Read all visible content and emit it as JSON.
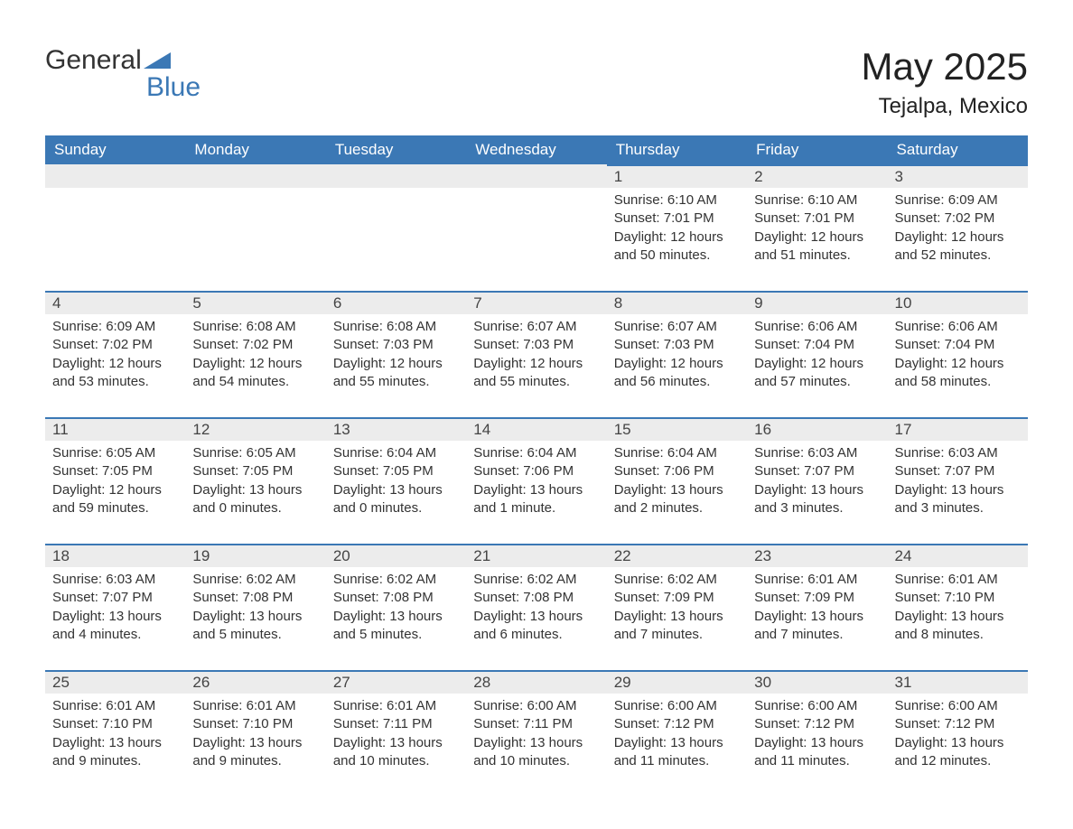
{
  "logo": {
    "text1": "General",
    "text2": "Blue"
  },
  "header": {
    "month": "May 2025",
    "location": "Tejalpa, Mexico"
  },
  "colors": {
    "header_bg": "#3b78b5",
    "header_text": "#ffffff",
    "daynum_bg": "#ececec",
    "daynum_border": "#3b78b5",
    "body_text": "#333333",
    "page_bg": "#ffffff"
  },
  "weekdays": [
    "Sunday",
    "Monday",
    "Tuesday",
    "Wednesday",
    "Thursday",
    "Friday",
    "Saturday"
  ],
  "weeks": [
    [
      {
        "blank": true
      },
      {
        "blank": true
      },
      {
        "blank": true
      },
      {
        "blank": true
      },
      {
        "day": "1",
        "sunrise": "Sunrise: 6:10 AM",
        "sunset": "Sunset: 7:01 PM",
        "daylight": "Daylight: 12 hours and 50 minutes."
      },
      {
        "day": "2",
        "sunrise": "Sunrise: 6:10 AM",
        "sunset": "Sunset: 7:01 PM",
        "daylight": "Daylight: 12 hours and 51 minutes."
      },
      {
        "day": "3",
        "sunrise": "Sunrise: 6:09 AM",
        "sunset": "Sunset: 7:02 PM",
        "daylight": "Daylight: 12 hours and 52 minutes."
      }
    ],
    [
      {
        "day": "4",
        "sunrise": "Sunrise: 6:09 AM",
        "sunset": "Sunset: 7:02 PM",
        "daylight": "Daylight: 12 hours and 53 minutes."
      },
      {
        "day": "5",
        "sunrise": "Sunrise: 6:08 AM",
        "sunset": "Sunset: 7:02 PM",
        "daylight": "Daylight: 12 hours and 54 minutes."
      },
      {
        "day": "6",
        "sunrise": "Sunrise: 6:08 AM",
        "sunset": "Sunset: 7:03 PM",
        "daylight": "Daylight: 12 hours and 55 minutes."
      },
      {
        "day": "7",
        "sunrise": "Sunrise: 6:07 AM",
        "sunset": "Sunset: 7:03 PM",
        "daylight": "Daylight: 12 hours and 55 minutes."
      },
      {
        "day": "8",
        "sunrise": "Sunrise: 6:07 AM",
        "sunset": "Sunset: 7:03 PM",
        "daylight": "Daylight: 12 hours and 56 minutes."
      },
      {
        "day": "9",
        "sunrise": "Sunrise: 6:06 AM",
        "sunset": "Sunset: 7:04 PM",
        "daylight": "Daylight: 12 hours and 57 minutes."
      },
      {
        "day": "10",
        "sunrise": "Sunrise: 6:06 AM",
        "sunset": "Sunset: 7:04 PM",
        "daylight": "Daylight: 12 hours and 58 minutes."
      }
    ],
    [
      {
        "day": "11",
        "sunrise": "Sunrise: 6:05 AM",
        "sunset": "Sunset: 7:05 PM",
        "daylight": "Daylight: 12 hours and 59 minutes."
      },
      {
        "day": "12",
        "sunrise": "Sunrise: 6:05 AM",
        "sunset": "Sunset: 7:05 PM",
        "daylight": "Daylight: 13 hours and 0 minutes."
      },
      {
        "day": "13",
        "sunrise": "Sunrise: 6:04 AM",
        "sunset": "Sunset: 7:05 PM",
        "daylight": "Daylight: 13 hours and 0 minutes."
      },
      {
        "day": "14",
        "sunrise": "Sunrise: 6:04 AM",
        "sunset": "Sunset: 7:06 PM",
        "daylight": "Daylight: 13 hours and 1 minute."
      },
      {
        "day": "15",
        "sunrise": "Sunrise: 6:04 AM",
        "sunset": "Sunset: 7:06 PM",
        "daylight": "Daylight: 13 hours and 2 minutes."
      },
      {
        "day": "16",
        "sunrise": "Sunrise: 6:03 AM",
        "sunset": "Sunset: 7:07 PM",
        "daylight": "Daylight: 13 hours and 3 minutes."
      },
      {
        "day": "17",
        "sunrise": "Sunrise: 6:03 AM",
        "sunset": "Sunset: 7:07 PM",
        "daylight": "Daylight: 13 hours and 3 minutes."
      }
    ],
    [
      {
        "day": "18",
        "sunrise": "Sunrise: 6:03 AM",
        "sunset": "Sunset: 7:07 PM",
        "daylight": "Daylight: 13 hours and 4 minutes."
      },
      {
        "day": "19",
        "sunrise": "Sunrise: 6:02 AM",
        "sunset": "Sunset: 7:08 PM",
        "daylight": "Daylight: 13 hours and 5 minutes."
      },
      {
        "day": "20",
        "sunrise": "Sunrise: 6:02 AM",
        "sunset": "Sunset: 7:08 PM",
        "daylight": "Daylight: 13 hours and 5 minutes."
      },
      {
        "day": "21",
        "sunrise": "Sunrise: 6:02 AM",
        "sunset": "Sunset: 7:08 PM",
        "daylight": "Daylight: 13 hours and 6 minutes."
      },
      {
        "day": "22",
        "sunrise": "Sunrise: 6:02 AM",
        "sunset": "Sunset: 7:09 PM",
        "daylight": "Daylight: 13 hours and 7 minutes."
      },
      {
        "day": "23",
        "sunrise": "Sunrise: 6:01 AM",
        "sunset": "Sunset: 7:09 PM",
        "daylight": "Daylight: 13 hours and 7 minutes."
      },
      {
        "day": "24",
        "sunrise": "Sunrise: 6:01 AM",
        "sunset": "Sunset: 7:10 PM",
        "daylight": "Daylight: 13 hours and 8 minutes."
      }
    ],
    [
      {
        "day": "25",
        "sunrise": "Sunrise: 6:01 AM",
        "sunset": "Sunset: 7:10 PM",
        "daylight": "Daylight: 13 hours and 9 minutes."
      },
      {
        "day": "26",
        "sunrise": "Sunrise: 6:01 AM",
        "sunset": "Sunset: 7:10 PM",
        "daylight": "Daylight: 13 hours and 9 minutes."
      },
      {
        "day": "27",
        "sunrise": "Sunrise: 6:01 AM",
        "sunset": "Sunset: 7:11 PM",
        "daylight": "Daylight: 13 hours and 10 minutes."
      },
      {
        "day": "28",
        "sunrise": "Sunrise: 6:00 AM",
        "sunset": "Sunset: 7:11 PM",
        "daylight": "Daylight: 13 hours and 10 minutes."
      },
      {
        "day": "29",
        "sunrise": "Sunrise: 6:00 AM",
        "sunset": "Sunset: 7:12 PM",
        "daylight": "Daylight: 13 hours and 11 minutes."
      },
      {
        "day": "30",
        "sunrise": "Sunrise: 6:00 AM",
        "sunset": "Sunset: 7:12 PM",
        "daylight": "Daylight: 13 hours and 11 minutes."
      },
      {
        "day": "31",
        "sunrise": "Sunrise: 6:00 AM",
        "sunset": "Sunset: 7:12 PM",
        "daylight": "Daylight: 13 hours and 12 minutes."
      }
    ]
  ]
}
